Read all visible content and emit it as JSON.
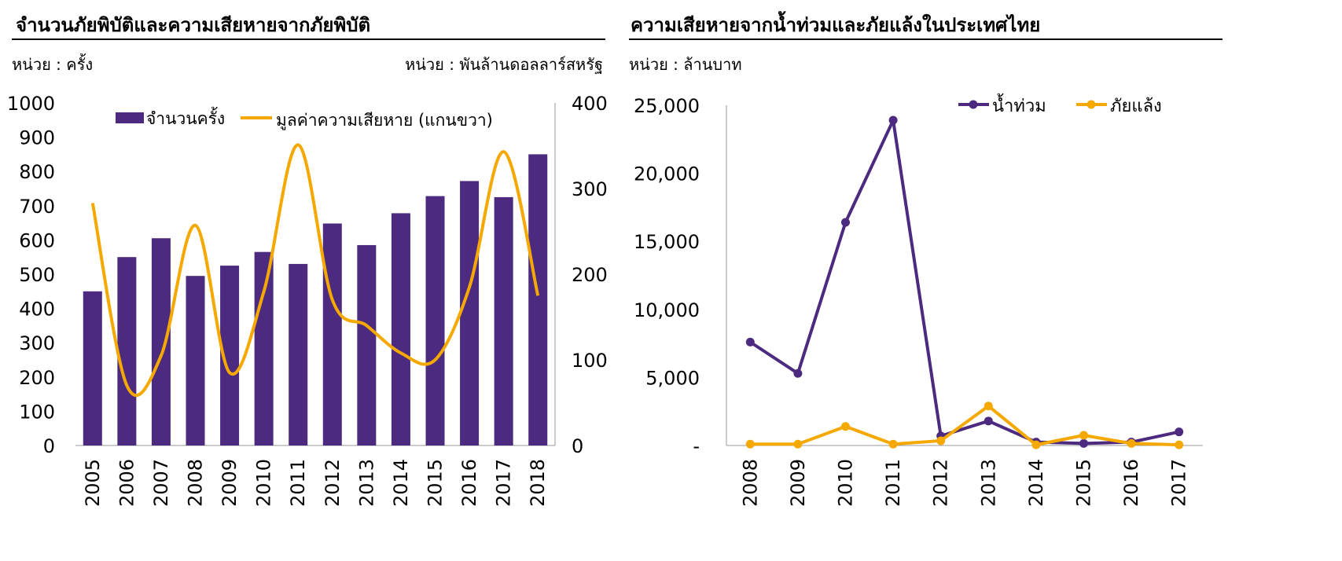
{
  "left_panel": {
    "title": "จำนวนภัยพิบัติและความเสียหายจากภัยพิบัติ",
    "unit_left": "หน่วย : ครั้ง",
    "unit_right": "หน่วย : พันล้านดอลลาร์สหรัฐ"
  },
  "right_panel": {
    "title": "ความเสียหายจากน้ำท่วมและภัยแล้งในประเทศไทย",
    "unit": "หน่วย : ล้านบาท"
  },
  "chart_data": [
    {
      "type": "bar",
      "categories": [
        "2005",
        "2006",
        "2007",
        "2008",
        "2009",
        "2010",
        "2011",
        "2012",
        "2013",
        "2014",
        "2015",
        "2016",
        "2017",
        "2018"
      ],
      "series": [
        {
          "name": "จำนวนครั้ง",
          "type": "bar",
          "axis": "left",
          "color": "#4b2a7f",
          "values": [
            450,
            550,
            605,
            495,
            525,
            565,
            530,
            648,
            585,
            678,
            728,
            772,
            725,
            850
          ]
        },
        {
          "name": "มูลค่าความเสียหาย (แกนขวา)",
          "type": "line",
          "axis": "right",
          "color": "#f5a800",
          "values": [
            283,
            70,
            105,
            257,
            85,
            180,
            351,
            170,
            140,
            108,
            100,
            185,
            343,
            175
          ]
        }
      ],
      "y_left": {
        "min": 0,
        "max": 1000,
        "ticks": [
          "0",
          "100",
          "200",
          "300",
          "400",
          "500",
          "600",
          "700",
          "800",
          "900",
          "1000"
        ]
      },
      "y_right": {
        "min": 0,
        "max": 400,
        "ticks": [
          "0",
          "100",
          "200",
          "300",
          "400"
        ]
      },
      "legend_position": "top",
      "grid": false
    },
    {
      "type": "line",
      "categories": [
        "2008",
        "2009",
        "2010",
        "2011",
        "2012",
        "2013",
        "2014",
        "2015",
        "2016",
        "2017"
      ],
      "series": [
        {
          "name": "น้ำท่วม",
          "color": "#4b2a7f",
          "values": [
            7600,
            5300,
            16400,
            23900,
            700,
            1800,
            250,
            150,
            250,
            1000
          ]
        },
        {
          "name": "ภัยแล้ง",
          "color": "#f5a800",
          "values": [
            100,
            100,
            1400,
            100,
            350,
            2900,
            50,
            750,
            150,
            50
          ]
        }
      ],
      "y": {
        "min": 0,
        "max": 25000,
        "ticks": [
          "-",
          "5,000",
          "10,000",
          "15,000",
          "20,000",
          "25,000"
        ]
      },
      "legend_position": "top-right",
      "grid": false
    }
  ]
}
